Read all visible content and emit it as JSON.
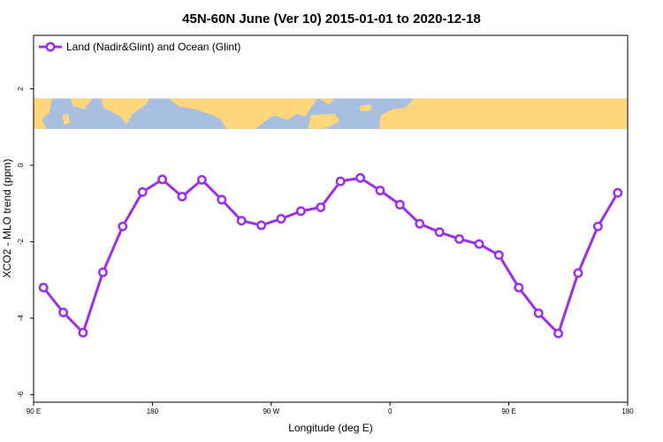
{
  "chart_data": {
    "type": "line",
    "title": "45N-60N June (Ver 10)   2015-01-01 to 2020-12-18",
    "xlabel": "Longitude (deg E)",
    "ylabel": "XCO2 - MLO trend (ppm)",
    "x_ticks": [
      {
        "value": 90,
        "label": "90 E"
      },
      {
        "value": 180,
        "label": "180"
      },
      {
        "value": 270,
        "label": "90 W"
      },
      {
        "value": 360,
        "label": "0"
      },
      {
        "value": 450,
        "label": "90 E"
      },
      {
        "value": 540,
        "label": "180"
      }
    ],
    "y_ticks": [
      {
        "value": 2,
        "label": "2"
      },
      {
        "value": 0,
        "label": "0"
      },
      {
        "value": -2,
        "label": "-2"
      },
      {
        "value": -4,
        "label": "-4"
      },
      {
        "value": -6,
        "label": "-6"
      }
    ],
    "xlim": [
      90,
      540
    ],
    "ylim": [
      -6.2,
      3.4
    ],
    "legend_position": "top-left",
    "map_strip": {
      "ymin": 0.95,
      "ymax": 1.75,
      "ocean_color": "#a9bfdf",
      "land_color": "#ffd67a"
    },
    "series": [
      {
        "name": "Land (Nadir&Glint) and Ocean (Glint)",
        "color": "#9b30e8",
        "x": [
          97.5,
          112.5,
          127.5,
          142.5,
          157.5,
          172.5,
          187.5,
          202.5,
          217.5,
          232.5,
          247.5,
          262.5,
          277.5,
          292.5,
          307.5,
          322.5,
          337.5,
          352.5,
          367.5,
          382.5,
          397.5,
          412.5,
          427.5,
          442.5,
          457.5,
          472.5,
          487.5,
          502.5,
          517.5,
          532.5
        ],
        "y": [
          -3.2,
          -3.85,
          -4.38,
          -2.8,
          -1.6,
          -0.7,
          -0.37,
          -0.82,
          -0.38,
          -0.9,
          -1.45,
          -1.57,
          -1.4,
          -1.2,
          -1.1,
          -0.42,
          -0.33,
          -0.66,
          -1.03,
          -1.53,
          -1.75,
          -1.93,
          -2.06,
          -2.35,
          -3.2,
          -3.87,
          -4.4,
          -2.82,
          -1.6,
          -0.72
        ]
      }
    ]
  }
}
